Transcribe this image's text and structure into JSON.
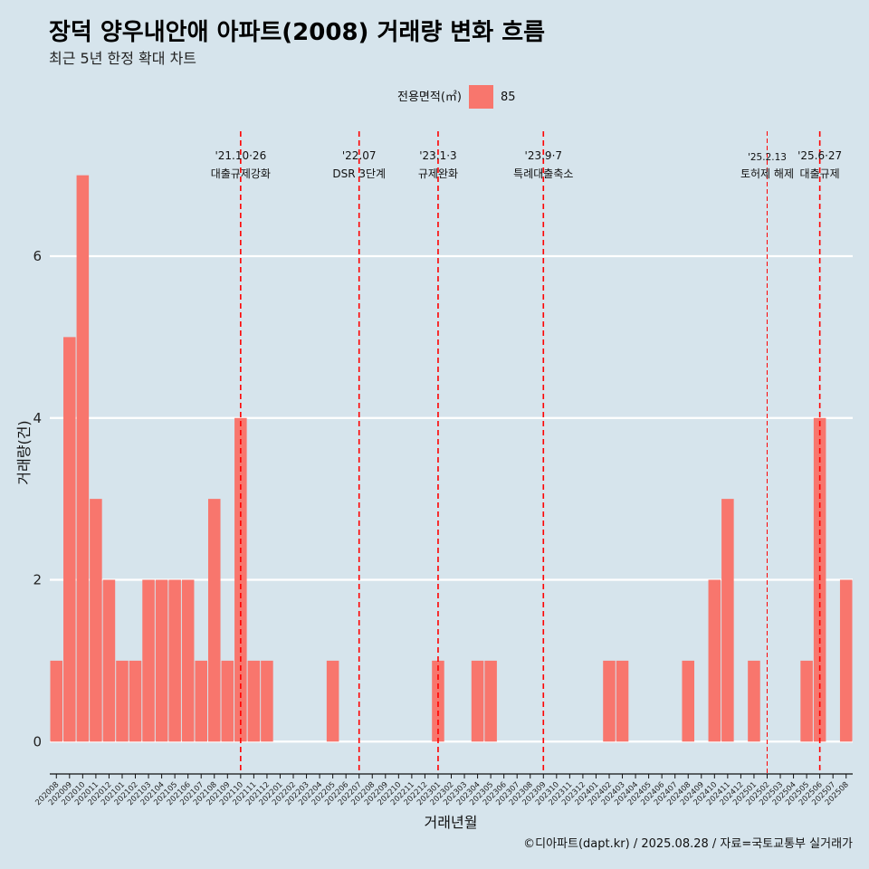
{
  "title": "장덕 양우내안애 아파트(2008) 거래량 변화 흐름",
  "subtitle": "최근 5년 한정 확대 차트",
  "caption": "©디아파트(dapt.kr) / 2025.08.28 / 자료=국토교통부 실거래가",
  "colors": {
    "background": "#d6e4ec",
    "bar": "#f8766d",
    "event_line": "#ff0000",
    "grid": "#ffffff"
  },
  "legend": {
    "title": "전용면적(㎡)",
    "items": [
      {
        "label": "85",
        "color": "#f8766d"
      }
    ]
  },
  "chart_data": {
    "type": "bar",
    "xlabel": "거래년월",
    "ylabel": "거래량(건)",
    "ylim": [
      -0.4,
      7.6
    ],
    "yticks": [
      0,
      2,
      4,
      6
    ],
    "grid": true,
    "legend_position": "top",
    "categories": [
      "202008",
      "202009",
      "202010",
      "202011",
      "202012",
      "202101",
      "202102",
      "202103",
      "202104",
      "202105",
      "202106",
      "202107",
      "202108",
      "202109",
      "202110",
      "202111",
      "202112",
      "202201",
      "202202",
      "202203",
      "202204",
      "202205",
      "202206",
      "202207",
      "202208",
      "202209",
      "202210",
      "202211",
      "202212",
      "202301",
      "202302",
      "202303",
      "202304",
      "202305",
      "202306",
      "202307",
      "202308",
      "202309",
      "202310",
      "202311",
      "202312",
      "202401",
      "202402",
      "202403",
      "202404",
      "202405",
      "202406",
      "202407",
      "202408",
      "202409",
      "202410",
      "202411",
      "202412",
      "202501",
      "202502",
      "202503",
      "202504",
      "202505",
      "202506",
      "202507",
      "202508"
    ],
    "series": [
      {
        "name": "85",
        "values": [
          1,
          5,
          7,
          3,
          2,
          1,
          1,
          2,
          2,
          2,
          2,
          1,
          3,
          1,
          4,
          1,
          1,
          0,
          0,
          0,
          0,
          1,
          0,
          0,
          0,
          0,
          0,
          0,
          0,
          1,
          0,
          0,
          1,
          1,
          0,
          0,
          0,
          0,
          0,
          0,
          0,
          0,
          1,
          1,
          0,
          0,
          0,
          0,
          1,
          0,
          2,
          3,
          0,
          1,
          0,
          0,
          0,
          1,
          4,
          0,
          2
        ]
      }
    ],
    "annotations": [
      {
        "month": "202110",
        "date": "'21.10·26",
        "label": "대출규제강화",
        "style": "dash"
      },
      {
        "month": "202207",
        "date": "'22.07",
        "label": "DSR 3단계",
        "style": "dash"
      },
      {
        "month": "202301",
        "date": "'23.1·3",
        "label": "규제완화",
        "style": "dash"
      },
      {
        "month": "202309",
        "date": "'23.9·7",
        "label": "특례대출축소",
        "style": "dash"
      },
      {
        "month": "202502",
        "date": "'25.2.13",
        "label": "토허제 해제",
        "style": "thin"
      },
      {
        "month": "202506",
        "date": "'25.6·27",
        "label": "대출규제",
        "style": "dash"
      }
    ]
  }
}
